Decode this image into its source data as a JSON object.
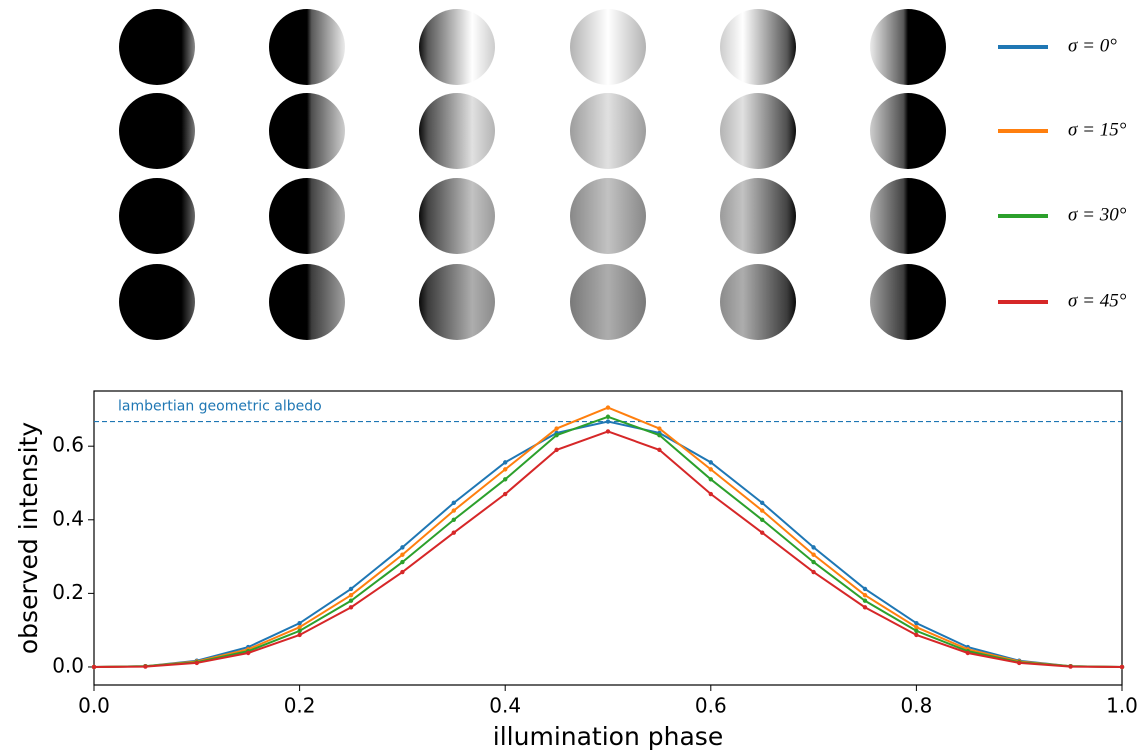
{
  "chart_data": {
    "type": "line",
    "xlabel": "illumination phase",
    "ylabel": "observed intensity",
    "x": [
      0,
      0.05,
      0.1,
      0.15,
      0.2,
      0.25,
      0.3,
      0.35,
      0.4,
      0.45,
      0.5,
      0.55,
      0.6,
      0.65,
      0.7,
      0.75,
      0.8,
      0.85,
      0.9,
      0.95,
      1
    ],
    "series": [
      {
        "name": "σ = 0°",
        "color": "#1f77b4",
        "values": [
          0,
          0.002,
          0.017,
          0.054,
          0.119,
          0.212,
          0.325,
          0.446,
          0.556,
          0.636,
          0.667,
          0.636,
          0.556,
          0.446,
          0.325,
          0.212,
          0.119,
          0.054,
          0.017,
          0.002,
          0
        ]
      },
      {
        "name": "σ = 15°",
        "color": "#ff7f0e",
        "values": [
          0,
          0.002,
          0.015,
          0.048,
          0.108,
          0.195,
          0.305,
          0.425,
          0.537,
          0.648,
          0.705,
          0.648,
          0.537,
          0.425,
          0.305,
          0.195,
          0.108,
          0.048,
          0.015,
          0.002,
          0
        ]
      },
      {
        "name": "σ = 30°",
        "color": "#2ca02c",
        "values": [
          0,
          0.002,
          0.013,
          0.043,
          0.098,
          0.18,
          0.285,
          0.4,
          0.51,
          0.63,
          0.68,
          0.63,
          0.51,
          0.4,
          0.285,
          0.18,
          0.098,
          0.043,
          0.013,
          0.002,
          0
        ]
      },
      {
        "name": "σ = 45°",
        "color": "#d62728",
        "values": [
          0,
          0.001,
          0.011,
          0.038,
          0.087,
          0.162,
          0.258,
          0.365,
          0.47,
          0.59,
          0.64,
          0.59,
          0.47,
          0.365,
          0.258,
          0.162,
          0.087,
          0.038,
          0.011,
          0.001,
          0
        ]
      }
    ],
    "hline": {
      "value": 0.667,
      "label": "lambertian geometric albedo",
      "color": "#1f77b4"
    },
    "xlim": [
      0,
      1
    ],
    "ylim": [
      -0.049,
      0.75
    ],
    "xticks": [
      {
        "value": 0,
        "label": "0.0"
      },
      0.2,
      0.4,
      0.6,
      0.8,
      {
        "value": 1,
        "label": "1.0"
      }
    ],
    "yticks": [
      {
        "value": 0,
        "label": "0.0"
      },
      0.2,
      0.4,
      0.6
    ],
    "grid": false
  }
}
